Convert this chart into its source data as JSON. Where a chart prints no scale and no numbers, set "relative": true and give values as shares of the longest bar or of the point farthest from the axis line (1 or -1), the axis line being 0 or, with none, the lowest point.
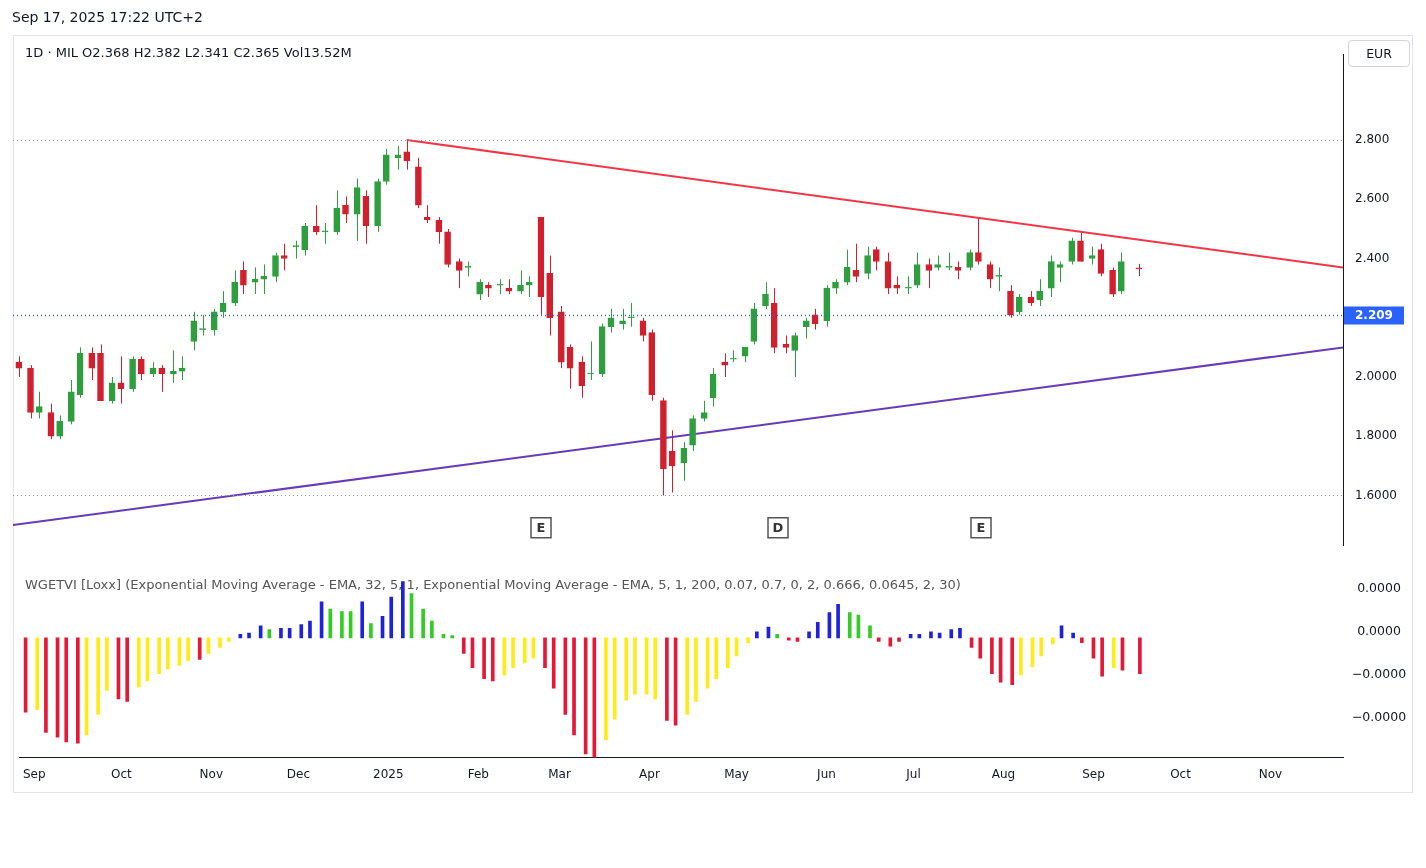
{
  "chart_data": [
    {
      "type": "candlestick",
      "title": "Sep 17, 2025 17:22 UTC+2",
      "subtitle": "1D · MIL  O2.368  H2.382  L2.341  C2.365  Vol13.52M",
      "x": [
        "2024-08-29",
        "2024-09-02",
        "2024-09-05",
        "2024-09-09",
        "2024-09-12",
        "2024-09-16",
        "2024-09-19",
        "2024-09-23",
        "2024-09-26",
        "2024-09-30",
        "2024-10-03",
        "2024-10-07",
        "2024-10-10",
        "2024-10-14",
        "2024-10-17",
        "2024-10-21",
        "2024-10-24",
        "2024-10-28",
        "2024-10-31",
        "2024-11-04",
        "2024-11-07",
        "2024-11-11",
        "2024-11-14",
        "2024-11-18",
        "2024-11-21",
        "2024-11-25",
        "2024-11-28",
        "2024-12-02",
        "2024-12-05",
        "2024-12-09",
        "2024-12-12",
        "2024-12-16",
        "2024-12-19",
        "2024-12-23",
        "2024-12-26",
        "2024-12-30",
        "2025-01-02",
        "2025-01-06",
        "2025-01-09",
        "2025-01-13",
        "2025-01-16",
        "2025-01-20",
        "2025-01-23",
        "2025-01-27",
        "2025-01-30",
        "2025-02-03",
        "2025-02-06",
        "2025-02-10",
        "2025-02-13",
        "2025-02-17",
        "2025-02-20",
        "2025-02-24",
        "2025-02-27",
        "2025-03-03",
        "2025-03-06",
        "2025-03-10",
        "2025-03-13",
        "2025-03-17",
        "2025-03-20",
        "2025-03-24",
        "2025-03-27",
        "2025-03-31",
        "2025-04-03",
        "2025-04-07",
        "2025-04-10",
        "2025-04-14",
        "2025-04-17",
        "2025-04-21",
        "2025-04-24",
        "2025-04-28",
        "2025-05-01",
        "2025-05-05",
        "2025-05-08",
        "2025-05-12",
        "2025-05-15",
        "2025-05-19",
        "2025-05-22",
        "2025-05-26",
        "2025-05-29",
        "2025-06-02",
        "2025-06-05",
        "2025-06-09",
        "2025-06-12",
        "2025-06-16",
        "2025-06-19",
        "2025-06-23",
        "2025-06-26",
        "2025-06-30",
        "2025-07-03",
        "2025-07-07",
        "2025-07-10",
        "2025-07-14",
        "2025-07-17",
        "2025-07-21",
        "2025-07-24",
        "2025-07-28",
        "2025-07-31",
        "2025-08-04",
        "2025-08-07",
        "2025-08-11",
        "2025-08-14",
        "2025-08-18",
        "2025-08-21",
        "2025-08-25",
        "2025-08-28",
        "2025-09-01",
        "2025-09-04",
        "2025-09-08",
        "2025-09-11",
        "2025-09-17"
      ],
      "ohlc": [
        [
          2.05,
          2.07,
          2.0,
          2.03
        ],
        [
          2.03,
          2.04,
          1.86,
          1.88
        ],
        [
          1.88,
          1.95,
          1.86,
          1.9
        ],
        [
          1.88,
          1.91,
          1.79,
          1.8
        ],
        [
          1.8,
          1.87,
          1.79,
          1.85
        ],
        [
          1.85,
          1.99,
          1.84,
          1.95
        ],
        [
          1.94,
          2.1,
          1.93,
          2.08
        ],
        [
          2.08,
          2.1,
          1.99,
          2.03
        ],
        [
          2.08,
          2.11,
          1.92,
          1.92
        ],
        [
          1.92,
          2.0,
          1.91,
          1.98
        ],
        [
          1.98,
          2.07,
          1.91,
          1.96
        ],
        [
          1.96,
          2.07,
          1.95,
          2.06
        ],
        [
          2.06,
          2.07,
          1.99,
          2.01
        ],
        [
          2.01,
          2.05,
          2.0,
          2.03
        ],
        [
          2.03,
          2.04,
          1.95,
          2.01
        ],
        [
          2.01,
          2.09,
          1.98,
          2.02
        ],
        [
          2.02,
          2.07,
          1.99,
          2.03
        ],
        [
          2.12,
          2.22,
          2.09,
          2.19
        ],
        [
          2.16,
          2.21,
          2.14,
          2.16
        ],
        [
          2.16,
          2.23,
          2.14,
          2.22
        ],
        [
          2.22,
          2.29,
          2.2,
          2.25
        ],
        [
          2.25,
          2.36,
          2.24,
          2.32
        ],
        [
          2.36,
          2.39,
          2.28,
          2.31
        ],
        [
          2.32,
          2.37,
          2.28,
          2.33
        ],
        [
          2.33,
          2.38,
          2.28,
          2.34
        ],
        [
          2.34,
          2.42,
          2.32,
          2.41
        ],
        [
          2.41,
          2.45,
          2.36,
          2.4
        ],
        [
          2.44,
          2.46,
          2.4,
          2.44
        ],
        [
          2.43,
          2.52,
          2.41,
          2.51
        ],
        [
          2.51,
          2.58,
          2.48,
          2.49
        ],
        [
          2.49,
          2.52,
          2.45,
          2.49
        ],
        [
          2.49,
          2.63,
          2.48,
          2.57
        ],
        [
          2.58,
          2.61,
          2.52,
          2.55
        ],
        [
          2.55,
          2.67,
          2.46,
          2.64
        ],
        [
          2.61,
          2.63,
          2.45,
          2.51
        ],
        [
          2.51,
          2.67,
          2.49,
          2.66
        ],
        [
          2.66,
          2.77,
          2.65,
          2.75
        ],
        [
          2.74,
          2.78,
          2.7,
          2.75
        ],
        [
          2.76,
          2.8,
          2.7,
          2.73
        ],
        [
          2.71,
          2.74,
          2.57,
          2.58
        ],
        [
          2.54,
          2.58,
          2.52,
          2.53
        ],
        [
          2.53,
          2.54,
          2.45,
          2.49
        ],
        [
          2.49,
          2.5,
          2.37,
          2.38
        ],
        [
          2.39,
          2.4,
          2.3,
          2.36
        ],
        [
          2.37,
          2.39,
          2.34,
          2.37
        ],
        [
          2.28,
          2.33,
          2.26,
          2.32
        ],
        [
          2.31,
          2.32,
          2.27,
          2.3
        ],
        [
          2.31,
          2.33,
          2.28,
          2.31
        ],
        [
          2.3,
          2.33,
          2.28,
          2.29
        ],
        [
          2.29,
          2.36,
          2.28,
          2.31
        ],
        [
          2.31,
          2.34,
          2.27,
          2.32
        ],
        [
          2.54,
          2.54,
          2.21,
          2.27
        ],
        [
          2.35,
          2.41,
          2.14,
          2.2
        ],
        [
          2.22,
          2.24,
          2.03,
          2.05
        ],
        [
          2.1,
          2.11,
          1.96,
          2.03
        ],
        [
          2.05,
          2.07,
          1.93,
          1.97
        ],
        [
          2.01,
          2.12,
          1.99,
          2.01
        ],
        [
          2.01,
          2.18,
          2.0,
          2.17
        ],
        [
          2.17,
          2.23,
          2.15,
          2.2
        ],
        [
          2.18,
          2.23,
          2.16,
          2.19
        ],
        [
          2.2,
          2.25,
          2.17,
          2.2
        ],
        [
          2.19,
          2.2,
          2.12,
          2.14
        ],
        [
          2.15,
          2.16,
          1.92,
          1.94
        ],
        [
          1.92,
          1.93,
          1.6,
          1.69
        ],
        [
          1.75,
          1.82,
          1.61,
          1.7
        ],
        [
          1.71,
          1.78,
          1.65,
          1.76
        ],
        [
          1.77,
          1.87,
          1.75,
          1.86
        ],
        [
          1.86,
          1.92,
          1.85,
          1.88
        ],
        [
          1.93,
          2.03,
          1.9,
          2.01
        ],
        [
          2.05,
          2.08,
          2.0,
          2.04
        ],
        [
          2.06,
          2.09,
          2.05,
          2.06
        ],
        [
          2.07,
          2.1,
          2.05,
          2.1
        ],
        [
          2.12,
          2.25,
          2.11,
          2.23
        ],
        [
          2.24,
          2.32,
          2.23,
          2.28
        ],
        [
          2.25,
          2.3,
          2.08,
          2.1
        ],
        [
          2.11,
          2.14,
          2.08,
          2.1
        ],
        [
          2.09,
          2.15,
          2.0,
          2.14
        ],
        [
          2.17,
          2.2,
          2.13,
          2.19
        ],
        [
          2.21,
          2.23,
          2.16,
          2.18
        ],
        [
          2.19,
          2.31,
          2.17,
          2.3
        ],
        [
          2.3,
          2.33,
          2.28,
          2.32
        ],
        [
          2.32,
          2.43,
          2.31,
          2.37
        ],
        [
          2.36,
          2.45,
          2.32,
          2.34
        ],
        [
          2.35,
          2.44,
          2.33,
          2.41
        ],
        [
          2.43,
          2.44,
          2.36,
          2.39
        ],
        [
          2.39,
          2.42,
          2.28,
          2.3
        ],
        [
          2.31,
          2.34,
          2.28,
          2.3
        ],
        [
          2.3,
          2.34,
          2.28,
          2.3
        ],
        [
          2.31,
          2.42,
          2.3,
          2.38
        ],
        [
          2.38,
          2.4,
          2.3,
          2.36
        ],
        [
          2.37,
          2.41,
          2.36,
          2.38
        ],
        [
          2.37,
          2.42,
          2.36,
          2.37
        ],
        [
          2.37,
          2.39,
          2.33,
          2.36
        ],
        [
          2.37,
          2.43,
          2.36,
          2.42
        ],
        [
          2.42,
          2.54,
          2.38,
          2.39
        ],
        [
          2.38,
          2.39,
          2.3,
          2.33
        ],
        [
          2.34,
          2.37,
          2.29,
          2.34
        ],
        [
          2.29,
          2.31,
          2.2,
          2.21
        ],
        [
          2.22,
          2.28,
          2.21,
          2.27
        ],
        [
          2.27,
          2.29,
          2.24,
          2.25
        ],
        [
          2.26,
          2.33,
          2.24,
          2.29
        ],
        [
          2.3,
          2.41,
          2.27,
          2.39
        ],
        [
          2.37,
          2.39,
          2.32,
          2.38
        ],
        [
          2.39,
          2.47,
          2.38,
          2.46
        ],
        [
          2.46,
          2.49,
          2.39,
          2.39
        ],
        [
          2.4,
          2.44,
          2.38,
          2.41
        ],
        [
          2.43,
          2.45,
          2.34,
          2.35
        ],
        [
          2.36,
          2.37,
          2.27,
          2.28
        ],
        [
          2.29,
          2.42,
          2.28,
          2.39
        ],
        [
          2.368,
          2.382,
          2.341,
          2.365
        ]
      ],
      "colors": [
        "#d0202e",
        "#d0202e",
        "#2e9e3e",
        "#d0202e",
        "#2e9e3e",
        "#2e9e3e",
        "#2e9e3e",
        "#d0202e",
        "#d0202e",
        "#2e9e3e",
        "#d0202e",
        "#2e9e3e",
        "#d0202e",
        "#2e9e3e",
        "#d0202e",
        "#2e9e3e",
        "#2e9e3e",
        "#2e9e3e",
        "#2e9e3e",
        "#2e9e3e",
        "#2e9e3e",
        "#2e9e3e",
        "#d0202e",
        "#2e9e3e",
        "#2e9e3e",
        "#2e9e3e",
        "#d0202e",
        "#2e9e3e",
        "#2e9e3e",
        "#d0202e",
        "#2e9e3e",
        "#2e9e3e",
        "#d0202e",
        "#2e9e3e",
        "#d0202e",
        "#2e9e3e",
        "#2e9e3e",
        "#2e9e3e",
        "#d0202e",
        "#d0202e",
        "#d0202e",
        "#d0202e",
        "#d0202e",
        "#d0202e",
        "#2e9e3e",
        "#2e9e3e",
        "#d0202e",
        "#2e9e3e",
        "#d0202e",
        "#2e9e3e",
        "#2e9e3e",
        "#d0202e",
        "#d0202e",
        "#d0202e",
        "#d0202e",
        "#d0202e",
        "#2e9e3e",
        "#2e9e3e",
        "#2e9e3e",
        "#2e9e3e",
        "#2e9e3e",
        "#d0202e",
        "#d0202e",
        "#d0202e",
        "#d0202e",
        "#2e9e3e",
        "#2e9e3e",
        "#2e9e3e",
        "#2e9e3e",
        "#d0202e",
        "#2e9e3e",
        "#2e9e3e",
        "#2e9e3e",
        "#2e9e3e",
        "#d0202e",
        "#d0202e",
        "#2e9e3e",
        "#2e9e3e",
        "#d0202e",
        "#2e9e3e",
        "#2e9e3e",
        "#2e9e3e",
        "#d0202e",
        "#2e9e3e",
        "#d0202e",
        "#d0202e",
        "#d0202e",
        "#2e9e3e",
        "#2e9e3e",
        "#d0202e",
        "#2e9e3e",
        "#2e9e3e",
        "#d0202e",
        "#2e9e3e",
        "#d0202e",
        "#d0202e",
        "#2e9e3e",
        "#d0202e",
        "#2e9e3e",
        "#d0202e",
        "#2e9e3e",
        "#2e9e3e",
        "#2e9e3e",
        "#2e9e3e",
        "#d0202e",
        "#2e9e3e",
        "#d0202e",
        "#d0202e",
        "#2e9e3e",
        "#d0202e"
      ],
      "series": [
        {
          "type": "line",
          "color": "#f23645",
          "x": [
            "2025-01-09",
            "2025-11-26"
          ],
          "values": [
            2.8,
            2.37
          ]
        },
        {
          "type": "line",
          "color": "#673ab7",
          "x": [
            "2024-08-27",
            "2025-11-26"
          ],
          "values": [
            1.5,
            2.1
          ]
        }
      ],
      "xlim": [
        "2024-08-27",
        "2025-11-26"
      ],
      "ylim": [
        1.43,
        3.09
      ],
      "yticks": [
        {
          "value": 1.6,
          "label": "1.6000"
        },
        {
          "value": 1.8,
          "label": "1.8000"
        },
        {
          "value": 2.0,
          "label": "2.0000"
        },
        {
          "value": 2.4,
          "label": "2.400"
        },
        {
          "value": 2.6,
          "label": "2.600"
        },
        {
          "value": 2.8,
          "label": "2.800"
        }
      ],
      "ref_lines": [
        {
          "axis": "y",
          "value": 2.209,
          "label": "2.209",
          "color": "#2962ff",
          "line_style": "dotted"
        },
        {
          "axis": "y",
          "value": 2.8,
          "color": "#9598a1",
          "line_style": "dotted"
        },
        {
          "axis": "y",
          "value": 1.6,
          "color": "#9598a1",
          "line_style": "dotted"
        }
      ],
      "annotations": [
        "EUR",
        "E",
        "D",
        "E"
      ],
      "tick_labels": "y",
      "marker": "none"
    },
    {
      "type": "bar",
      "relative": true,
      "title": "WGETVI [Loxx] (Exponential Moving Average - EMA, 32, 5, 1, Exponential Moving Average - EMA, 5, 1, 200, 0.07, 0.7, 0, 2, 0.666, 0.0645, 2, 30)",
      "x": [
        "2024-08-29",
        "2024-09-02",
        "2024-09-05",
        "2024-09-09",
        "2024-09-12",
        "2024-09-16",
        "2024-09-19",
        "2024-09-23",
        "2024-09-26",
        "2024-09-30",
        "2024-10-03",
        "2024-10-07",
        "2024-10-10",
        "2024-10-14",
        "2024-10-17",
        "2024-10-21",
        "2024-10-24",
        "2024-10-28",
        "2024-10-31",
        "2024-11-04",
        "2024-11-07",
        "2024-11-11",
        "2024-11-14",
        "2024-11-18",
        "2024-11-21",
        "2024-11-25",
        "2024-11-28",
        "2024-12-02",
        "2024-12-05",
        "2024-12-09",
        "2024-12-12",
        "2024-12-16",
        "2024-12-19",
        "2024-12-23",
        "2024-12-26",
        "2024-12-30",
        "2025-01-02",
        "2025-01-06",
        "2025-01-09",
        "2025-01-13",
        "2025-01-16",
        "2025-01-20",
        "2025-01-23",
        "2025-01-27",
        "2025-01-30",
        "2025-02-03",
        "2025-02-06",
        "2025-02-10",
        "2025-02-13",
        "2025-02-17",
        "2025-02-20",
        "2025-02-24",
        "2025-02-27",
        "2025-03-03",
        "2025-03-06",
        "2025-03-10",
        "2025-03-13",
        "2025-03-17",
        "2025-03-20",
        "2025-03-24",
        "2025-03-27",
        "2025-03-31",
        "2025-04-03",
        "2025-04-07",
        "2025-04-10",
        "2025-04-14",
        "2025-04-17",
        "2025-04-21",
        "2025-04-24",
        "2025-04-28",
        "2025-05-01",
        "2025-05-05",
        "2025-05-08",
        "2025-05-12",
        "2025-05-15",
        "2025-05-19",
        "2025-05-22",
        "2025-05-26",
        "2025-05-29",
        "2025-06-02",
        "2025-06-05",
        "2025-06-09",
        "2025-06-12",
        "2025-06-16",
        "2025-06-19",
        "2025-06-23",
        "2025-06-26",
        "2025-06-30",
        "2025-07-03",
        "2025-07-07",
        "2025-07-10",
        "2025-07-14",
        "2025-07-17",
        "2025-07-21",
        "2025-07-24",
        "2025-07-28",
        "2025-07-31",
        "2025-08-04",
        "2025-08-07",
        "2025-08-11",
        "2025-08-14",
        "2025-08-18",
        "2025-08-21",
        "2025-08-25",
        "2025-08-28",
        "2025-09-01",
        "2025-09-04",
        "2025-09-08",
        "2025-09-11",
        "2025-09-17"
      ],
      "values": [
        -0.62,
        -0.6,
        -0.79,
        -0.83,
        -0.87,
        -0.88,
        -0.81,
        -0.64,
        -0.44,
        -0.51,
        -0.53,
        -0.41,
        -0.36,
        -0.3,
        -0.26,
        -0.23,
        -0.19,
        -0.18,
        -0.13,
        -0.08,
        -0.03,
        0.03,
        0.04,
        0.1,
        0.07,
        0.08,
        0.08,
        0.11,
        0.14,
        0.3,
        0.24,
        0.22,
        0.22,
        0.3,
        0.12,
        0.18,
        0.34,
        0.47,
        0.37,
        0.24,
        0.14,
        0.03,
        0.02,
        -0.13,
        -0.25,
        -0.34,
        -0.36,
        -0.31,
        -0.25,
        -0.21,
        -0.17,
        -0.25,
        -0.42,
        -0.64,
        -0.81,
        -0.97,
        -1,
        -0.85,
        -0.68,
        -0.52,
        -0.47,
        -0.47,
        -0.51,
        -0.69,
        -0.73,
        -0.64,
        -0.53,
        -0.42,
        -0.34,
        -0.25,
        -0.15,
        -0.04,
        0.05,
        0.09,
        0.03,
        -0.02,
        -0.03,
        0.05,
        0.13,
        0.21,
        0.28,
        0.21,
        0.19,
        0.1,
        -0.03,
        -0.07,
        -0.03,
        0.03,
        0.03,
        0.05,
        0.04,
        0.07,
        0.08,
        -0.08,
        -0.17,
        -0.3,
        -0.37,
        -0.39,
        -0.31,
        -0.24,
        -0.15,
        -0.05,
        0.1,
        0.04,
        -0.04,
        -0.17,
        -0.32,
        -0.25,
        -0.27,
        -0.3
      ],
      "colors": [
        "#e31937",
        "#ffeb1a",
        "#e31937",
        "#e31937",
        "#e31937",
        "#e31937",
        "#ffeb1a",
        "#ffeb1a",
        "#ffeb1a",
        "#e31937",
        "#e31937",
        "#ffeb1a",
        "#ffeb1a",
        "#ffeb1a",
        "#ffeb1a",
        "#ffeb1a",
        "#ffeb1a",
        "#e31937",
        "#ffeb1a",
        "#ffeb1a",
        "#ffeb1a",
        "#1e22d8",
        "#1e22d8",
        "#1e22d8",
        "#33cc22",
        "#1e22d8",
        "#1e22d8",
        "#1e22d8",
        "#1e22d8",
        "#1e22d8",
        "#33cc22",
        "#33cc22",
        "#33cc22",
        "#1e22d8",
        "#33cc22",
        "#1e22d8",
        "#1e22d8",
        "#1e22d8",
        "#33cc22",
        "#33cc22",
        "#33cc22",
        "#33cc22",
        "#33cc22",
        "#e31937",
        "#e31937",
        "#e31937",
        "#e31937",
        "#ffeb1a",
        "#ffeb1a",
        "#ffeb1a",
        "#ffeb1a",
        "#e31937",
        "#e31937",
        "#e31937",
        "#e31937",
        "#e31937",
        "#e31937",
        "#ffeb1a",
        "#ffeb1a",
        "#ffeb1a",
        "#ffeb1a",
        "#ffeb1a",
        "#ffeb1a",
        "#e31937",
        "#e31937",
        "#ffeb1a",
        "#ffeb1a",
        "#ffeb1a",
        "#ffeb1a",
        "#ffeb1a",
        "#ffeb1a",
        "#ffeb1a",
        "#1e22d8",
        "#1e22d8",
        "#33cc22",
        "#e31937",
        "#e31937",
        "#1e22d8",
        "#1e22d8",
        "#1e22d8",
        "#1e22d8",
        "#33cc22",
        "#33cc22",
        "#33cc22",
        "#e31937",
        "#e31937",
        "#e31937",
        "#1e22d8",
        "#1e22d8",
        "#1e22d8",
        "#1e22d8",
        "#1e22d8",
        "#1e22d8",
        "#e31937",
        "#e31937",
        "#e31937",
        "#e31937",
        "#e31937",
        "#ffeb1a",
        "#ffeb1a",
        "#ffeb1a",
        "#ffeb1a",
        "#1e22d8",
        "#1e22d8",
        "#e31937",
        "#e31937",
        "#e31937",
        "#ffeb1a",
        "#e31937",
        "#e31937"
      ],
      "xlim": [
        "2024-08-27",
        "2025-11-26"
      ],
      "xticks": [
        {
          "value": "2024-09-01",
          "label": "Sep"
        },
        {
          "value": "2024-10-01",
          "label": "Oct"
        },
        {
          "value": "2024-11-01",
          "label": "Nov"
        },
        {
          "value": "2024-12-01",
          "label": "Dec"
        },
        {
          "value": "2025-01-01",
          "label": "2025"
        },
        {
          "value": "2025-02-01",
          "label": "Feb"
        },
        {
          "value": "2025-03-01",
          "label": "Mar"
        },
        {
          "value": "2025-04-01",
          "label": "Apr"
        },
        {
          "value": "2025-05-01",
          "label": "May"
        },
        {
          "value": "2025-06-01",
          "label": "Jun"
        },
        {
          "value": "2025-07-01",
          "label": "Jul"
        },
        {
          "value": "2025-08-01",
          "label": "Aug"
        },
        {
          "value": "2025-09-01",
          "label": "Sep"
        },
        {
          "value": "2025-10-01",
          "label": "Oct"
        },
        {
          "value": "2025-11-01",
          "label": "Nov"
        }
      ],
      "annotations": [
        "0.0000",
        "0.0000",
        "−0.0000",
        "−0.0000"
      ],
      "tick_labels": "x"
    }
  ]
}
